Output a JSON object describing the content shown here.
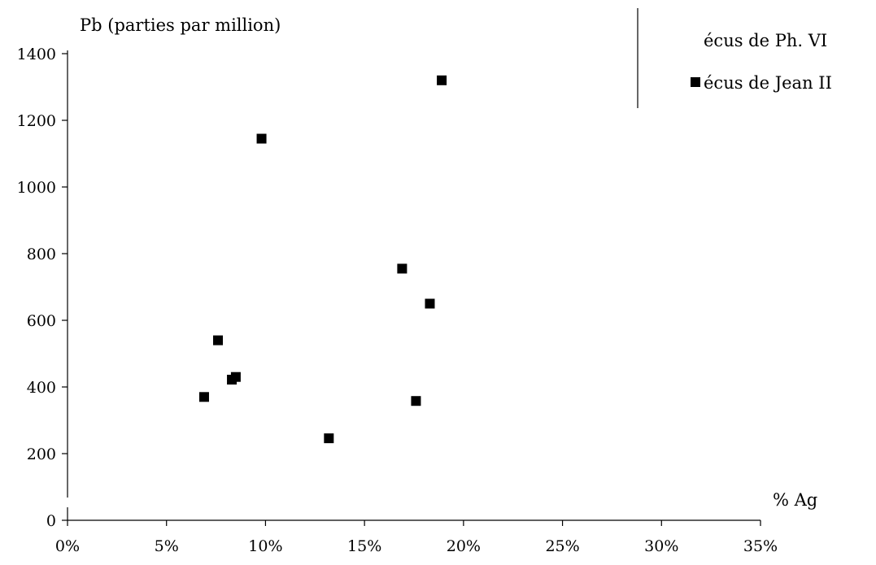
{
  "chart_data": {
    "type": "scatter",
    "title": "",
    "xlabel": "% Ag",
    "ylabel": "Pb (parties par million)",
    "xlim": [
      0,
      0.35
    ],
    "ylim": [
      0,
      1400
    ],
    "x_ticks": [
      0,
      0.05,
      0.1,
      0.15,
      0.2,
      0.25,
      0.3,
      0.35
    ],
    "x_tick_labels": [
      "0%",
      "5%",
      "10%",
      "15%",
      "20%",
      "25%",
      "30%",
      "35%"
    ],
    "y_ticks": [
      0,
      200,
      400,
      600,
      800,
      1000,
      1200,
      1400
    ],
    "y_tick_labels": [
      "0",
      "200",
      "400",
      "600",
      "800",
      "1000",
      "1200",
      "1400"
    ],
    "grid": false,
    "legend_position": "top-right",
    "series": [
      {
        "name": "écus de Ph. VI",
        "marker": "none",
        "x": [],
        "y": []
      },
      {
        "name": "écus de Jean II",
        "marker": "square",
        "color": "#000000",
        "x": [
          0.189,
          0.098,
          0.169,
          0.183,
          0.076,
          0.085,
          0.083,
          0.069,
          0.176,
          0.132
        ],
        "y": [
          1320,
          1145,
          755,
          650,
          540,
          430,
          422,
          370,
          358,
          246
        ]
      }
    ]
  }
}
